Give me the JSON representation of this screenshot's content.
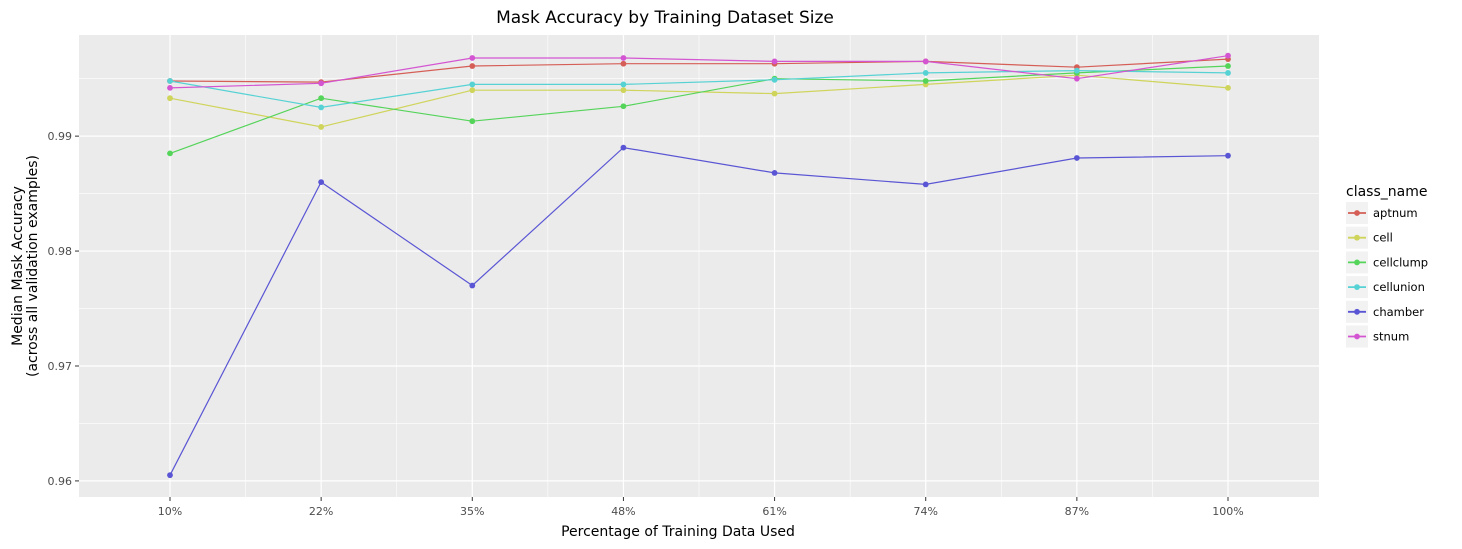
{
  "chart_data": {
    "type": "line",
    "title": "Mask Accuracy by Training Dataset Size",
    "xlabel": "Percentage of Training Data Used",
    "ylabel": [
      "Median Mask Accuracy",
      "(across all validation examples)"
    ],
    "categories": [
      "10%",
      "22%",
      "35%",
      "48%",
      "61%",
      "74%",
      "87%",
      "100%"
    ],
    "ylim": [
      0.9586,
      0.9988
    ],
    "yticks": [
      0.96,
      0.97,
      0.98,
      0.99
    ],
    "ytick_labels": [
      "0.96",
      "0.97",
      "0.98",
      "0.99"
    ],
    "grid": true,
    "legend": {
      "title": "class_name",
      "position": "right"
    },
    "series": [
      {
        "name": "aptnum",
        "color": "#d55e57",
        "values": [
          0.9948,
          0.9947,
          0.9961,
          0.9963,
          0.9963,
          0.9965,
          0.996,
          0.9967
        ]
      },
      {
        "name": "cell",
        "color": "#cfd45a",
        "values": [
          0.9933,
          0.9908,
          0.994,
          0.994,
          0.9937,
          0.9945,
          0.9953,
          0.9942
        ]
      },
      {
        "name": "cellclump",
        "color": "#55d45a",
        "values": [
          0.9885,
          0.9933,
          0.9913,
          0.9926,
          0.995,
          0.9948,
          0.9955,
          0.9961
        ]
      },
      {
        "name": "cellunion",
        "color": "#56d2d4",
        "values": [
          0.9948,
          0.9925,
          0.9945,
          0.9945,
          0.9949,
          0.9955,
          0.9957,
          0.9955
        ]
      },
      {
        "name": "chamber",
        "color": "#5a55d4",
        "values": [
          0.9605,
          0.986,
          0.977,
          0.989,
          0.9868,
          0.9858,
          0.9881,
          0.9883
        ]
      },
      {
        "name": "stnum",
        "color": "#d455d2",
        "values": [
          0.9942,
          0.9946,
          0.9968,
          0.9968,
          0.9965,
          0.9965,
          0.995,
          0.997
        ]
      }
    ]
  }
}
